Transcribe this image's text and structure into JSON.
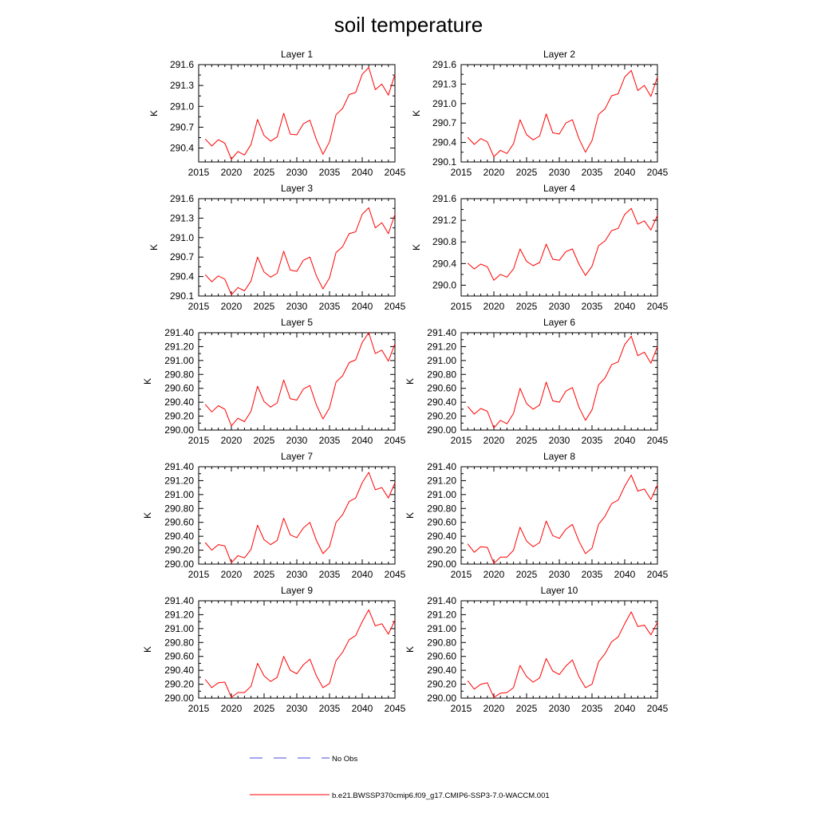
{
  "title": "soil temperature",
  "colors": {
    "model_line": "#ff0000",
    "obs_line": "#4a4ad8",
    "axis": "#000000"
  },
  "legend": {
    "obs_label": "No Obs",
    "model_label": "b.e21.BWSSP370cmip6.f09_g17.CMIP6-SSP3-7.0-WACCM.001"
  },
  "chart_data": [
    {
      "type": "line",
      "title": "Layer 1",
      "ylabel": "K",
      "xlim": [
        2015,
        2045
      ],
      "ylim": [
        290.2,
        291.6
      ],
      "xticks": [
        "2015",
        "2020",
        "2025",
        "2030",
        "2035",
        "2040",
        "2045"
      ],
      "yticks": [
        "290.4",
        "290.7",
        "291.0",
        "291.3",
        "291.6"
      ],
      "x": [
        2016,
        2017,
        2018,
        2019,
        2020,
        2021,
        2022,
        2023,
        2024,
        2025,
        2026,
        2027,
        2028,
        2029,
        2030,
        2031,
        2032,
        2033,
        2034,
        2035,
        2036,
        2037,
        2038,
        2039,
        2040,
        2041,
        2042,
        2043,
        2044,
        2045
      ],
      "series": [
        {
          "values": [
            290.53,
            290.43,
            290.52,
            290.47,
            290.24,
            290.35,
            290.3,
            290.45,
            290.81,
            290.58,
            290.5,
            290.56,
            290.9,
            290.6,
            290.59,
            290.75,
            290.8,
            290.52,
            290.31,
            290.49,
            290.88,
            290.97,
            291.17,
            291.2,
            291.46,
            291.56,
            291.24,
            291.32,
            291.16,
            291.46
          ]
        }
      ]
    },
    {
      "type": "line",
      "title": "Layer 2",
      "ylabel": "K",
      "xlim": [
        2015,
        2045
      ],
      "ylim": [
        290.1,
        291.6
      ],
      "xticks": [
        "2015",
        "2020",
        "2025",
        "2030",
        "2035",
        "2040",
        "2045"
      ],
      "yticks": [
        "290.1",
        "290.4",
        "290.7",
        "291.0",
        "291.3",
        "291.6"
      ],
      "x": [
        2016,
        2017,
        2018,
        2019,
        2020,
        2021,
        2022,
        2023,
        2024,
        2025,
        2026,
        2027,
        2028,
        2029,
        2030,
        2031,
        2032,
        2033,
        2034,
        2035,
        2036,
        2037,
        2038,
        2039,
        2040,
        2041,
        2042,
        2043,
        2044,
        2045
      ],
      "series": [
        {
          "values": [
            290.48,
            290.37,
            290.46,
            290.41,
            290.18,
            290.28,
            290.23,
            290.38,
            290.75,
            290.52,
            290.44,
            290.5,
            290.84,
            290.55,
            290.53,
            290.7,
            290.75,
            290.46,
            290.25,
            290.43,
            290.83,
            290.92,
            291.12,
            291.15,
            291.41,
            291.51,
            291.2,
            291.28,
            291.11,
            291.41
          ]
        }
      ]
    },
    {
      "type": "line",
      "title": "Layer 3",
      "ylabel": "K",
      "xlim": [
        2015,
        2045
      ],
      "ylim": [
        290.1,
        291.6
      ],
      "xticks": [
        "2015",
        "2020",
        "2025",
        "2030",
        "2035",
        "2040",
        "2045"
      ],
      "yticks": [
        "290.1",
        "290.4",
        "290.7",
        "291.0",
        "291.3",
        "291.6"
      ],
      "x": [
        2016,
        2017,
        2018,
        2019,
        2020,
        2021,
        2022,
        2023,
        2024,
        2025,
        2026,
        2027,
        2028,
        2029,
        2030,
        2031,
        2032,
        2033,
        2034,
        2035,
        2036,
        2037,
        2038,
        2039,
        2040,
        2041,
        2042,
        2043,
        2044,
        2045
      ],
      "series": [
        {
          "values": [
            290.43,
            290.32,
            290.41,
            290.36,
            290.12,
            290.23,
            290.18,
            290.33,
            290.7,
            290.47,
            290.39,
            290.45,
            290.79,
            290.5,
            290.48,
            290.65,
            290.7,
            290.41,
            290.21,
            290.38,
            290.77,
            290.86,
            291.06,
            291.09,
            291.36,
            291.46,
            291.15,
            291.23,
            291.06,
            291.36
          ]
        }
      ]
    },
    {
      "type": "line",
      "title": "Layer 4",
      "ylabel": "K",
      "xlim": [
        2015,
        2045
      ],
      "ylim": [
        289.8,
        291.6
      ],
      "xticks": [
        "2015",
        "2020",
        "2025",
        "2030",
        "2035",
        "2040",
        "2045"
      ],
      "yticks": [
        "290.0",
        "290.4",
        "290.8",
        "291.2",
        "291.6"
      ],
      "x": [
        2016,
        2017,
        2018,
        2019,
        2020,
        2021,
        2022,
        2023,
        2024,
        2025,
        2026,
        2027,
        2028,
        2029,
        2030,
        2031,
        2032,
        2033,
        2034,
        2035,
        2036,
        2037,
        2038,
        2039,
        2040,
        2041,
        2042,
        2043,
        2044,
        2045
      ],
      "series": [
        {
          "values": [
            290.41,
            290.3,
            290.39,
            290.34,
            290.09,
            290.2,
            290.15,
            290.3,
            290.67,
            290.44,
            290.36,
            290.42,
            290.76,
            290.48,
            290.46,
            290.62,
            290.67,
            290.39,
            290.18,
            290.35,
            290.73,
            290.82,
            291.01,
            291.05,
            291.31,
            291.42,
            291.13,
            291.19,
            291.02,
            291.29
          ]
        }
      ]
    },
    {
      "type": "line",
      "title": "Layer 5",
      "ylabel": "K",
      "xlim": [
        2015,
        2045
      ],
      "ylim": [
        290.0,
        291.4
      ],
      "xticks": [
        "2015",
        "2020",
        "2025",
        "2030",
        "2035",
        "2040",
        "2045"
      ],
      "yticks": [
        "290.00",
        "290.20",
        "290.40",
        "290.60",
        "290.80",
        "291.00",
        "291.20",
        "291.40"
      ],
      "x": [
        2016,
        2017,
        2018,
        2019,
        2020,
        2021,
        2022,
        2023,
        2024,
        2025,
        2026,
        2027,
        2028,
        2029,
        2030,
        2031,
        2032,
        2033,
        2034,
        2035,
        2036,
        2037,
        2038,
        2039,
        2040,
        2041,
        2042,
        2043,
        2044,
        2045
      ],
      "series": [
        {
          "values": [
            290.37,
            290.26,
            290.35,
            290.3,
            290.06,
            290.17,
            290.12,
            290.27,
            290.63,
            290.41,
            290.33,
            290.39,
            290.72,
            290.45,
            290.43,
            290.59,
            290.64,
            290.36,
            290.16,
            290.32,
            290.69,
            290.78,
            290.97,
            291.01,
            291.26,
            291.4,
            291.1,
            291.15,
            290.99,
            291.24
          ]
        }
      ]
    },
    {
      "type": "line",
      "title": "Layer 6",
      "ylabel": "K",
      "xlim": [
        2015,
        2045
      ],
      "ylim": [
        290.0,
        291.4
      ],
      "xticks": [
        "2015",
        "2020",
        "2025",
        "2030",
        "2035",
        "2040",
        "2045"
      ],
      "yticks": [
        "290.00",
        "290.20",
        "290.40",
        "290.60",
        "290.80",
        "291.00",
        "291.20",
        "291.40"
      ],
      "x": [
        2016,
        2017,
        2018,
        2019,
        2020,
        2021,
        2022,
        2023,
        2024,
        2025,
        2026,
        2027,
        2028,
        2029,
        2030,
        2031,
        2032,
        2033,
        2034,
        2035,
        2036,
        2037,
        2038,
        2039,
        2040,
        2041,
        2042,
        2043,
        2044,
        2045
      ],
      "series": [
        {
          "values": [
            290.34,
            290.23,
            290.31,
            290.27,
            290.03,
            290.14,
            290.09,
            290.24,
            290.6,
            290.38,
            290.3,
            290.36,
            290.69,
            290.42,
            290.4,
            290.56,
            290.61,
            290.33,
            290.14,
            290.29,
            290.65,
            290.75,
            290.94,
            290.98,
            291.23,
            291.35,
            291.07,
            291.12,
            290.96,
            291.2
          ]
        }
      ]
    },
    {
      "type": "line",
      "title": "Layer 7",
      "ylabel": "K",
      "xlim": [
        2015,
        2045
      ],
      "ylim": [
        290.0,
        291.4
      ],
      "xticks": [
        "2015",
        "2020",
        "2025",
        "2030",
        "2035",
        "2040",
        "2045"
      ],
      "yticks": [
        "290.00",
        "290.20",
        "290.40",
        "290.60",
        "290.80",
        "291.00",
        "291.20",
        "291.40"
      ],
      "x": [
        2016,
        2017,
        2018,
        2019,
        2020,
        2021,
        2022,
        2023,
        2024,
        2025,
        2026,
        2027,
        2028,
        2029,
        2030,
        2031,
        2032,
        2033,
        2034,
        2035,
        2036,
        2037,
        2038,
        2039,
        2040,
        2041,
        2042,
        2043,
        2044,
        2045
      ],
      "series": [
        {
          "values": [
            290.31,
            290.2,
            290.28,
            290.26,
            290.02,
            290.12,
            290.09,
            290.21,
            290.56,
            290.35,
            290.28,
            290.34,
            290.66,
            290.42,
            290.38,
            290.52,
            290.6,
            290.34,
            290.15,
            290.25,
            290.6,
            290.71,
            290.9,
            290.95,
            291.17,
            291.32,
            291.07,
            291.1,
            290.95,
            291.17
          ]
        }
      ]
    },
    {
      "type": "line",
      "title": "Layer 8",
      "ylabel": "K",
      "xlim": [
        2015,
        2045
      ],
      "ylim": [
        290.0,
        291.4
      ],
      "xticks": [
        "2015",
        "2020",
        "2025",
        "2030",
        "2035",
        "2040",
        "2045"
      ],
      "yticks": [
        "290.00",
        "290.20",
        "290.40",
        "290.60",
        "290.80",
        "291.00",
        "291.20",
        "291.40"
      ],
      "x": [
        2016,
        2017,
        2018,
        2019,
        2020,
        2021,
        2022,
        2023,
        2024,
        2025,
        2026,
        2027,
        2028,
        2029,
        2030,
        2031,
        2032,
        2033,
        2034,
        2035,
        2036,
        2037,
        2038,
        2039,
        2040,
        2041,
        2042,
        2043,
        2044,
        2045
      ],
      "series": [
        {
          "values": [
            290.29,
            290.17,
            290.25,
            290.24,
            290.01,
            290.1,
            290.1,
            290.2,
            290.53,
            290.33,
            290.25,
            290.31,
            290.62,
            290.41,
            290.37,
            290.5,
            290.57,
            290.33,
            290.15,
            290.23,
            290.57,
            290.69,
            290.87,
            290.92,
            291.12,
            291.28,
            291.05,
            291.08,
            290.93,
            291.14
          ]
        }
      ]
    },
    {
      "type": "line",
      "title": "Layer 9",
      "ylabel": "K",
      "xlim": [
        2015,
        2045
      ],
      "ylim": [
        290.0,
        291.4
      ],
      "xticks": [
        "2015",
        "2020",
        "2025",
        "2030",
        "2035",
        "2040",
        "2045"
      ],
      "yticks": [
        "290.00",
        "290.20",
        "290.40",
        "290.60",
        "290.80",
        "291.00",
        "291.20",
        "291.40"
      ],
      "x": [
        2016,
        2017,
        2018,
        2019,
        2020,
        2021,
        2022,
        2023,
        2024,
        2025,
        2026,
        2027,
        2028,
        2029,
        2030,
        2031,
        2032,
        2033,
        2034,
        2035,
        2036,
        2037,
        2038,
        2039,
        2040,
        2041,
        2042,
        2043,
        2044,
        2045
      ],
      "series": [
        {
          "values": [
            290.27,
            290.15,
            290.22,
            290.23,
            290.01,
            290.08,
            290.08,
            290.17,
            290.5,
            290.32,
            290.24,
            290.3,
            290.6,
            290.4,
            290.35,
            290.48,
            290.56,
            290.32,
            290.15,
            290.21,
            290.54,
            290.66,
            290.84,
            290.9,
            291.1,
            291.27,
            291.04,
            291.07,
            290.92,
            291.12
          ]
        }
      ]
    },
    {
      "type": "line",
      "title": "Layer 10",
      "ylabel": "K",
      "xlim": [
        2015,
        2045
      ],
      "ylim": [
        290.0,
        291.4
      ],
      "xticks": [
        "2015",
        "2020",
        "2025",
        "2030",
        "2035",
        "2040",
        "2045"
      ],
      "yticks": [
        "290.00",
        "290.20",
        "290.40",
        "290.60",
        "290.80",
        "291.00",
        "291.20",
        "291.40"
      ],
      "x": [
        2016,
        2017,
        2018,
        2019,
        2020,
        2021,
        2022,
        2023,
        2024,
        2025,
        2026,
        2027,
        2028,
        2029,
        2030,
        2031,
        2032,
        2033,
        2034,
        2035,
        2036,
        2037,
        2038,
        2039,
        2040,
        2041,
        2042,
        2043,
        2044,
        2045
      ],
      "series": [
        {
          "values": [
            290.25,
            290.13,
            290.2,
            290.22,
            290.01,
            290.07,
            290.08,
            290.15,
            290.47,
            290.31,
            290.23,
            290.29,
            290.57,
            290.39,
            290.34,
            290.46,
            290.55,
            290.31,
            290.15,
            290.2,
            290.52,
            290.64,
            290.81,
            290.88,
            291.07,
            291.24,
            291.03,
            291.05,
            290.91,
            291.09
          ]
        }
      ]
    }
  ]
}
